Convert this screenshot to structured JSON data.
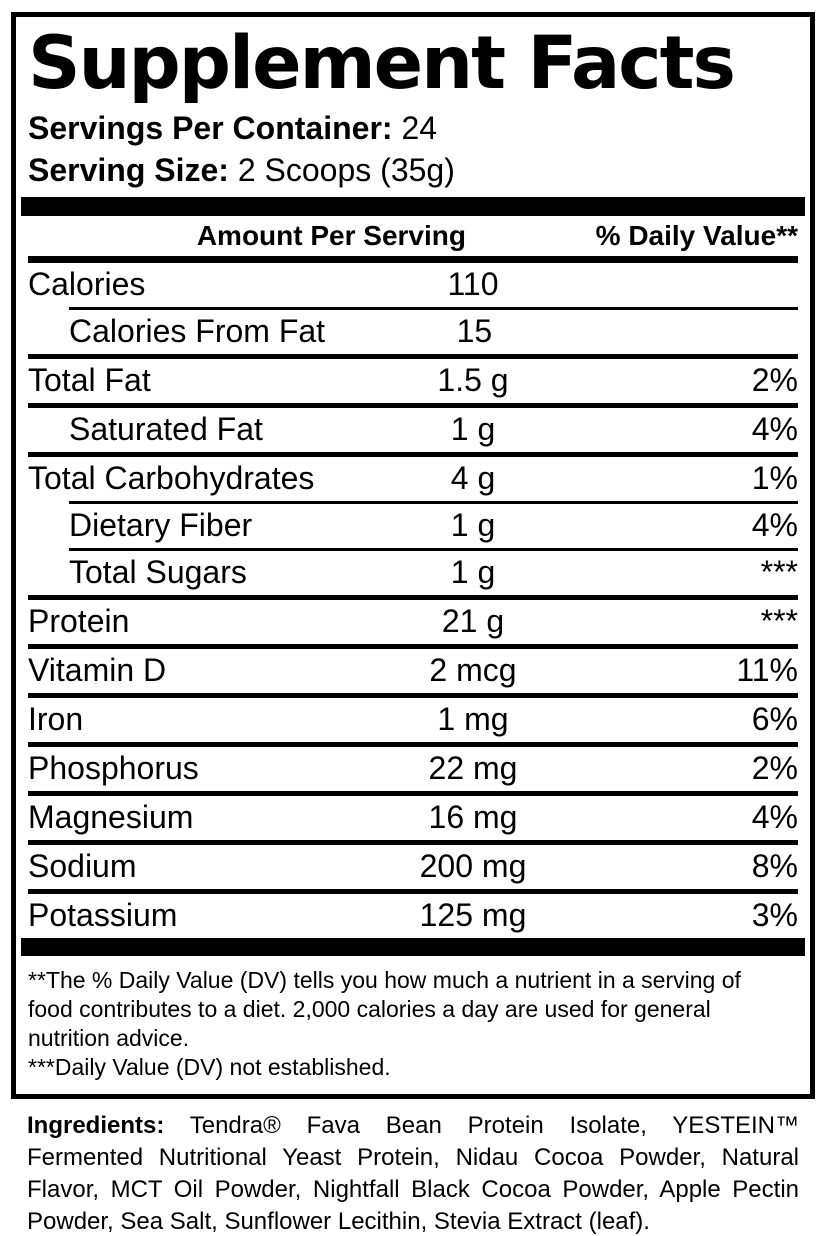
{
  "colors": {
    "text": "#000000",
    "background": "#ffffff"
  },
  "label": {
    "title": "Supplement Facts",
    "servings_per_container": {
      "label": "Servings Per Container:",
      "value": "24"
    },
    "serving_size": {
      "label": "Serving Size:",
      "value": "2 Scoops (35g)"
    },
    "table": {
      "amount_header": "Amount Per Serving",
      "dv_header": "% Daily Value**",
      "rows": [
        {
          "name": "Calories",
          "amount": "110",
          "dv": "",
          "indent": false,
          "divider_below": "indent"
        },
        {
          "name": "Calories From Fat",
          "amount": "15",
          "dv": "",
          "indent": true,
          "divider_below": "full"
        },
        {
          "name": "Total Fat",
          "amount": "1.5 g",
          "dv": "2%",
          "indent": false,
          "divider_below": "full"
        },
        {
          "name": "Saturated Fat",
          "amount": "1 g",
          "dv": "4%",
          "indent": true,
          "divider_below": "full"
        },
        {
          "name": "Total Carbohydrates",
          "amount": "4 g",
          "dv": "1%",
          "indent": false,
          "divider_below": "indent"
        },
        {
          "name": "Dietary Fiber",
          "amount": "1 g",
          "dv": "4%",
          "indent": true,
          "divider_below": "indent"
        },
        {
          "name": "Total Sugars",
          "amount": "1 g",
          "dv": "***",
          "indent": true,
          "divider_below": "full"
        },
        {
          "name": "Protein",
          "amount": "21 g",
          "dv": "***",
          "indent": false,
          "divider_below": "full"
        },
        {
          "name": "Vitamin D",
          "amount": "2 mcg",
          "dv": "11%",
          "indent": false,
          "divider_below": "full"
        },
        {
          "name": "Iron",
          "amount": "1 mg",
          "dv": "6%",
          "indent": false,
          "divider_below": "full"
        },
        {
          "name": "Phosphorus",
          "amount": "22 mg",
          "dv": "2%",
          "indent": false,
          "divider_below": "full"
        },
        {
          "name": "Magnesium",
          "amount": "16 mg",
          "dv": "4%",
          "indent": false,
          "divider_below": "full"
        },
        {
          "name": "Sodium",
          "amount": "200 mg",
          "dv": "8%",
          "indent": false,
          "divider_below": "full"
        },
        {
          "name": "Potassium",
          "amount": "125 mg",
          "dv": "3%",
          "indent": false,
          "divider_below": "none"
        }
      ]
    },
    "footnotes": {
      "daily_value": "**The % Daily Value (DV) tells you how much a nutrient in a serving of\nfood contributes to a diet. 2,000 calories a day are used for general\nnutrition advice.",
      "not_established": "***Daily Value (DV) not established."
    }
  },
  "ingredients": {
    "label": "Ingredients:",
    "lines": [
      "Tendra® Fava Bean Protein Isolate, YESTEIN™",
      "Fermented Nutritional Yeast Protein, Nidau Cocoa Powder, Natural",
      "Flavor, MCT Oil Powder, Nightfall Black Cocoa Powder, Apple Pectin",
      "Powder, Sea Salt, Sunflower Lecithin, Stevia Extract (leaf)."
    ]
  }
}
